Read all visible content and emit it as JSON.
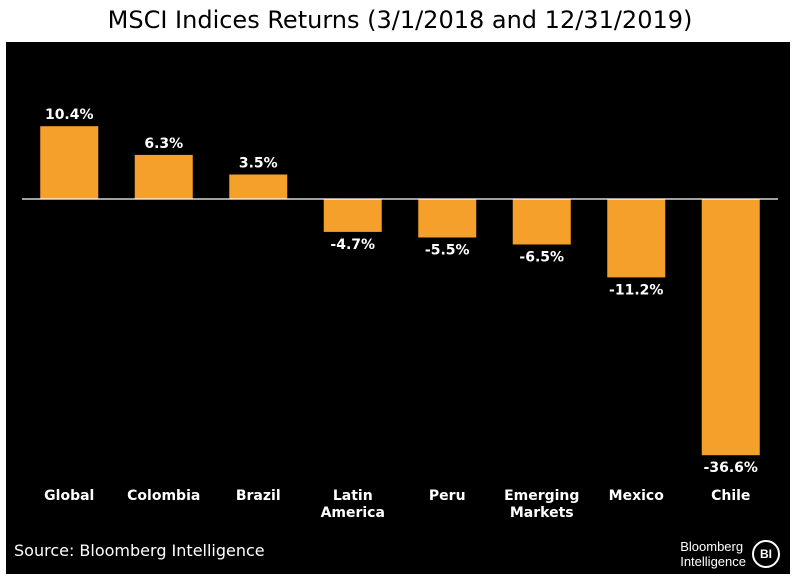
{
  "chart_data": {
    "type": "bar",
    "title": "MSCI Indices Returns (3/1/2018 and 12/31/2019)",
    "categories": [
      "Global",
      "Colombia",
      "Brazil",
      "Latin\nAmerica",
      "Peru",
      "Emerging\nMarkets",
      "Mexico",
      "Chile"
    ],
    "values": [
      10.4,
      6.3,
      3.5,
      -4.7,
      -5.5,
      -6.5,
      -11.2,
      -36.6
    ],
    "data_labels": [
      "10.4%",
      "6.3%",
      "3.5%",
      "-4.7%",
      "-5.5%",
      "-6.5%",
      "-11.2%",
      "-36.6%"
    ],
    "xlabel": "",
    "ylabel": "",
    "ylim": [
      -38,
      11
    ],
    "grid": false,
    "bar_color": "#F5A02A",
    "background": "#000000",
    "axis_color": "#FFFFFF"
  },
  "footer": {
    "source": "Source: Bloomberg Intelligence",
    "brand_line1": "Bloomberg",
    "brand_line2": "Intelligence",
    "brand_mark": "BI"
  }
}
